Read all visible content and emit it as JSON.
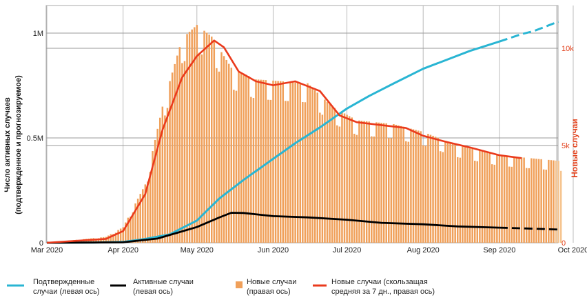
{
  "chart_data": {
    "type": "bar+line",
    "ylabel_left_line1": "Число активных случаев",
    "ylabel_left_line2": "(подтвержденное и прогнозируемое)",
    "ylabel_right": "Новые случаи",
    "x_ticks": [
      "Mar 2020",
      "Apr 2020",
      "May 2020",
      "Jun 2020",
      "Jul 2020",
      "Aug 2020",
      "Sep 2020",
      "Oct 2020"
    ],
    "y_left_ticks": [
      {
        "value": 0,
        "label": "0"
      },
      {
        "value": 500000,
        "label": "0.5M"
      },
      {
        "value": 1000000,
        "label": "1M"
      }
    ],
    "y_right_ticks": [
      {
        "value": 0,
        "label": "0"
      },
      {
        "value": 5000,
        "label": "5k"
      },
      {
        "value": 10000,
        "label": "10k"
      }
    ],
    "ylim_left": [
      0,
      1000000
    ],
    "ylim_right": [
      0,
      10000
    ],
    "forecast_shaded_from": "2020-09-24",
    "grid": true,
    "colors": {
      "confirmed": "#29b5d3",
      "active": "#000000",
      "new_bars": "#f0a05a",
      "avg7": "#ea3a1c",
      "right_axis": "#e2401b",
      "grid": "#999999",
      "shade": "#d9d9d9"
    },
    "series": [
      {
        "name": "Подтвержденные случаи (левая ось)",
        "key": "confirmed",
        "points": [
          [
            "2020-03-01",
            0
          ],
          [
            "2020-03-20",
            1000
          ],
          [
            "2020-04-01",
            4000
          ],
          [
            "2020-04-10",
            18000
          ],
          [
            "2020-04-20",
            40000
          ],
          [
            "2020-05-01",
            106000
          ],
          [
            "2020-05-10",
            210000
          ],
          [
            "2020-05-20",
            300000
          ],
          [
            "2020-06-01",
            400000
          ],
          [
            "2020-06-10",
            475000
          ],
          [
            "2020-06-20",
            550000
          ],
          [
            "2020-07-01",
            640000
          ],
          [
            "2020-07-10",
            700000
          ],
          [
            "2020-07-20",
            760000
          ],
          [
            "2020-08-01",
            830000
          ],
          [
            "2020-08-10",
            870000
          ],
          [
            "2020-08-20",
            915000
          ],
          [
            "2020-09-01",
            960000
          ],
          [
            "2020-09-10",
            995000
          ],
          [
            "2020-09-15",
            1010000
          ],
          [
            "2020-09-25",
            1055000
          ]
        ],
        "forecast_from": "2020-09-08"
      },
      {
        "name": "Активные случаи (левая ось)",
        "key": "active",
        "points": [
          [
            "2020-03-01",
            0
          ],
          [
            "2020-04-01",
            2000
          ],
          [
            "2020-04-15",
            20000
          ],
          [
            "2020-05-01",
            75000
          ],
          [
            "2020-05-10",
            120000
          ],
          [
            "2020-05-15",
            143000
          ],
          [
            "2020-05-20",
            142000
          ],
          [
            "2020-06-01",
            127000
          ],
          [
            "2020-06-15",
            121000
          ],
          [
            "2020-07-01",
            110000
          ],
          [
            "2020-07-15",
            95000
          ],
          [
            "2020-08-01",
            88000
          ],
          [
            "2020-08-15",
            78000
          ],
          [
            "2020-09-01",
            72000
          ],
          [
            "2020-09-15",
            67000
          ],
          [
            "2020-09-25",
            63000
          ]
        ],
        "forecast_from": "2020-09-10"
      },
      {
        "name": "Новые случаи (скользащая средняя за 7 дн., правая ось)",
        "key": "avg7",
        "points": [
          [
            "2020-03-01",
            0
          ],
          [
            "2020-03-25",
            200
          ],
          [
            "2020-04-01",
            600
          ],
          [
            "2020-04-10",
            2500
          ],
          [
            "2020-04-17",
            5800
          ],
          [
            "2020-04-25",
            8500
          ],
          [
            "2020-05-01",
            9600
          ],
          [
            "2020-05-08",
            10400
          ],
          [
            "2020-05-12",
            10050
          ],
          [
            "2020-05-18",
            8800
          ],
          [
            "2020-05-25",
            8300
          ],
          [
            "2020-06-01",
            8100
          ],
          [
            "2020-06-10",
            8300
          ],
          [
            "2020-06-20",
            7800
          ],
          [
            "2020-06-28",
            6550
          ],
          [
            "2020-07-05",
            6200
          ],
          [
            "2020-07-15",
            6050
          ],
          [
            "2020-07-25",
            5900
          ],
          [
            "2020-08-01",
            5500
          ],
          [
            "2020-08-10",
            5200
          ],
          [
            "2020-08-20",
            4900
          ],
          [
            "2020-09-01",
            4500
          ],
          [
            "2020-09-10",
            4350
          ]
        ]
      }
    ],
    "bars": {
      "name": "Новые случаи (правая ось)",
      "key": "new_bars",
      "axis": "right",
      "start": "2020-03-01",
      "end": "2020-09-26",
      "profile": [
        [
          "2020-03-01",
          0
        ],
        [
          "2020-03-25",
          300
        ],
        [
          "2020-04-01",
          800
        ],
        [
          "2020-04-10",
          3000
        ],
        [
          "2020-04-17",
          7000
        ],
        [
          "2020-04-25",
          10500
        ],
        [
          "2020-05-01",
          11200
        ],
        [
          "2020-05-07",
          10600
        ],
        [
          "2020-05-15",
          9000
        ],
        [
          "2020-05-25",
          8400
        ],
        [
          "2020-06-05",
          8300
        ],
        [
          "2020-06-15",
          8200
        ],
        [
          "2020-06-25",
          7000
        ],
        [
          "2020-07-05",
          6300
        ],
        [
          "2020-07-20",
          6100
        ],
        [
          "2020-08-01",
          5700
        ],
        [
          "2020-08-15",
          5000
        ],
        [
          "2020-09-01",
          4500
        ],
        [
          "2020-09-26",
          4200
        ]
      ]
    },
    "legend": [
      {
        "key": "confirmed",
        "line1": "Подтвержденные",
        "line2": "случаи (левая ось)"
      },
      {
        "key": "active",
        "line1": "Активные случаи",
        "line2": "(левая ось)"
      },
      {
        "key": "new_bars",
        "line1": "Новые случаи",
        "line2": "(правая ось)"
      },
      {
        "key": "avg7",
        "line1": "Новые случаи (скользащая",
        "line2": "средняя за 7 дн., правая ось)"
      }
    ]
  }
}
